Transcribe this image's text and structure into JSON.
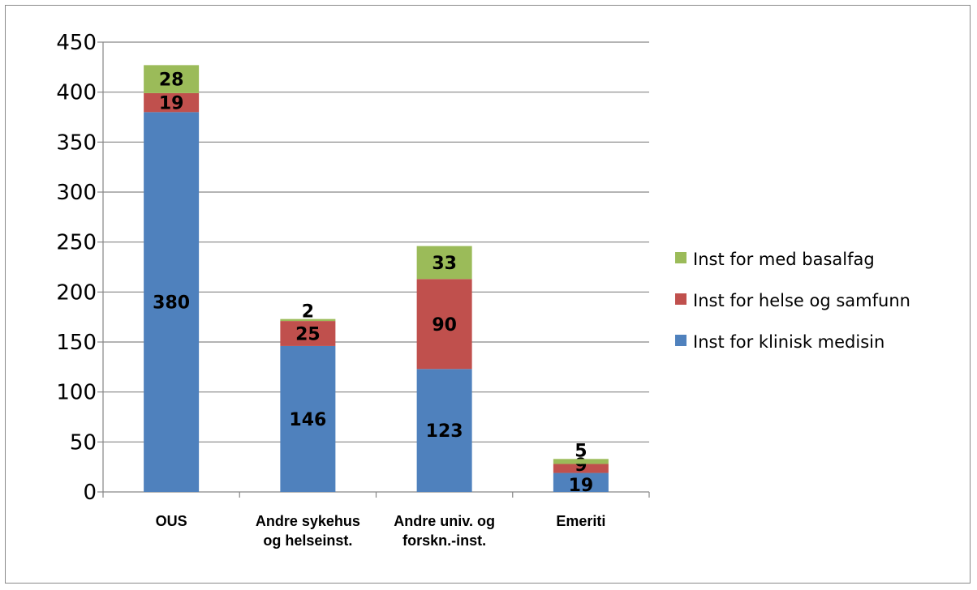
{
  "chart_data": {
    "type": "bar",
    "stacked": true,
    "categories": [
      [
        "OUS"
      ],
      [
        "Andre sykehus",
        "og helseinst."
      ],
      [
        "Andre univ. og",
        "forskn.-inst."
      ],
      [
        "Emeriti"
      ]
    ],
    "series": [
      {
        "name": "Inst for klinisk medisin",
        "color": "#4f81bd",
        "values": [
          380,
          146,
          123,
          19
        ]
      },
      {
        "name": "Inst for helse og samfunn",
        "color": "#c0504d",
        "values": [
          19,
          25,
          90,
          9
        ]
      },
      {
        "name": "Inst for med basalfag",
        "color": "#9bbb59",
        "values": [
          28,
          2,
          33,
          5
        ]
      }
    ],
    "ylim": [
      0,
      450
    ],
    "yticks": [
      0,
      50,
      100,
      150,
      200,
      250,
      300,
      350,
      400,
      450
    ],
    "grid": true,
    "legend_position": "right"
  }
}
